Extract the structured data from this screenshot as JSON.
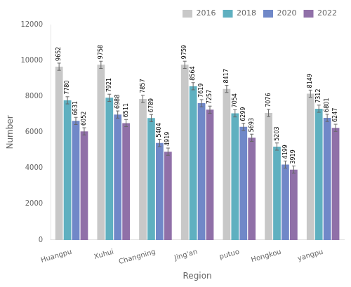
{
  "chart_data": {
    "type": "bar",
    "xlabel": "Region",
    "ylabel": "Number",
    "categories": [
      "Huangpu",
      "Xuhui",
      "Changning",
      "Jing'an",
      "putuo",
      "Hongkou",
      "yangpu"
    ],
    "series": [
      {
        "name": "2016",
        "color": "#c8c8c8",
        "values": [
          9652,
          9758,
          7857,
          9759,
          8417,
          7076,
          8149
        ],
        "error": 200
      },
      {
        "name": "2018",
        "color": "#5fb0c0",
        "values": [
          7780,
          7921,
          6789,
          8564,
          7054,
          5203,
          7312
        ],
        "error": 200
      },
      {
        "name": "2020",
        "color": "#7088c8",
        "values": [
          6631,
          6988,
          5404,
          7619,
          6299,
          4199,
          6801
        ],
        "error": 200
      },
      {
        "name": "2022",
        "color": "#9070a8",
        "values": [
          6052,
          6511,
          4919,
          7257,
          5693,
          3919,
          6247
        ],
        "error": 200
      }
    ],
    "ylim": [
      0,
      12000
    ],
    "yticks": [
      0,
      2000,
      4000,
      6000,
      8000,
      10000,
      12000
    ],
    "grid": false,
    "legend": "upper right",
    "data_labels": true
  }
}
